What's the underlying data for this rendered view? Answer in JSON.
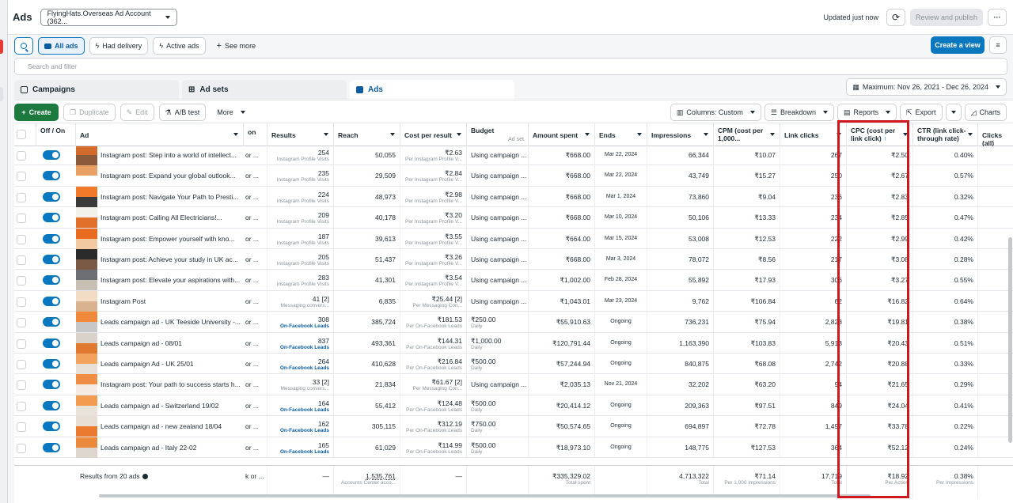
{
  "header": {
    "title": "Ads",
    "account": "FlyingHats.Overseas Ad Account (362...",
    "updated": "Updated just now",
    "review": "Review and publish",
    "more": "···"
  },
  "filters": {
    "all_ads": "All ads",
    "had_delivery": "Had delivery",
    "active_ads": "Active ads",
    "see_more": "See more",
    "create_view": "Create a view"
  },
  "search": {
    "placeholder": "Search and filter"
  },
  "tabs": [
    {
      "label": "Campaigns"
    },
    {
      "label": "Ad sets"
    },
    {
      "label": "Ads"
    }
  ],
  "date_range": "Maximum: Nov 26, 2021 - Dec 26, 2024",
  "toolbar": {
    "create": "Create",
    "duplicate": "Duplicate",
    "edit": "Edit",
    "ab_test": "A/B test",
    "more": "More",
    "columns": "Columns: Custom",
    "breakdown": "Breakdown",
    "reports": "Reports",
    "export": "Export",
    "charts": "Charts"
  },
  "columns": {
    "offon": "Off / On",
    "ad": "Ad",
    "delivery": "on",
    "results": "Results",
    "reach": "Reach",
    "cpr": "Cost per result",
    "budget": "Budget",
    "budget_sub": "Ad set",
    "spent": "Amount spent",
    "ends": "Ends",
    "impressions": "Impressions",
    "cpm": "CPM (cost per 1,000...",
    "link_clicks": "Link clicks",
    "cpc": "CPC (cost per link click)",
    "ctr": "CTR (link click-through rate)",
    "clicks_all": "Clicks (all)"
  },
  "rows": [
    {
      "name": "Instagram post: Step into a world of intellect...",
      "delivery": "or ...",
      "results": "254",
      "results_sub": "Instagram Profile Visits",
      "reach": "50,055",
      "cpr": "₹2.63",
      "cpr_sub": "Per Instagram Profile V...",
      "budget": "Using campaign ...",
      "budget_sub": "",
      "spent": "₹668.00",
      "ends": "Mar 22, 2024",
      "impressions": "66,344",
      "cpm": "₹10.07",
      "link_clicks": "267",
      "cpc": "₹2.50",
      "ctr": "0.40%"
    },
    {
      "name": "Instagram post: Expand your global outlook...",
      "delivery": "or ...",
      "results": "235",
      "results_sub": "Instagram Profile Visits",
      "reach": "29,509",
      "cpr": "₹2.84",
      "cpr_sub": "Per Instagram Profile V...",
      "budget": "Using campaign ...",
      "budget_sub": "",
      "spent": "₹668.00",
      "ends": "Mar 22, 2024",
      "impressions": "43,749",
      "cpm": "₹15.27",
      "link_clicks": "250",
      "cpc": "₹2.67",
      "ctr": "0.57%"
    },
    {
      "name": "Instagram post: Navigate Your Path to Presti...",
      "delivery": "or ...",
      "results": "224",
      "results_sub": "Instagram Profile Visits",
      "reach": "48,973",
      "cpr": "₹2.98",
      "cpr_sub": "Per Instagram Profile V...",
      "budget": "Using campaign ...",
      "budget_sub": "",
      "spent": "₹668.00",
      "ends": "Mar 1, 2024",
      "impressions": "73,860",
      "cpm": "₹9.04",
      "link_clicks": "236",
      "cpc": "₹2.83",
      "ctr": "0.32%"
    },
    {
      "name": "Instagram post: Calling All Electricians!...",
      "delivery": "or ...",
      "results": "209",
      "results_sub": "Instagram Profile Visits",
      "reach": "40,178",
      "cpr": "₹3.20",
      "cpr_sub": "Per Instagram Profile V...",
      "budget": "Using campaign ...",
      "budget_sub": "",
      "spent": "₹668.00",
      "ends": "Mar 10, 2024",
      "impressions": "50,106",
      "cpm": "₹13.33",
      "link_clicks": "234",
      "cpc": "₹2.85",
      "ctr": "0.47%"
    },
    {
      "name": "Instagram post: Empower yourself with kno...",
      "delivery": "or ...",
      "results": "187",
      "results_sub": "Instagram Profile Visits",
      "reach": "39,613",
      "cpr": "₹3.55",
      "cpr_sub": "Per Instagram Profile V...",
      "budget": "Using campaign ...",
      "budget_sub": "",
      "spent": "₹664.00",
      "ends": "Mar 15, 2024",
      "impressions": "53,008",
      "cpm": "₹12.53",
      "link_clicks": "222",
      "cpc": "₹2.99",
      "ctr": "0.42%"
    },
    {
      "name": "Instagram post: Achieve your study in UK ac...",
      "delivery": "or ...",
      "results": "205",
      "results_sub": "Instagram Profile Visits",
      "reach": "51,437",
      "cpr": "₹3.26",
      "cpr_sub": "Per Instagram Profile V...",
      "budget": "Using campaign ...",
      "budget_sub": "",
      "spent": "₹668.00",
      "ends": "Mar 3, 2024",
      "impressions": "78,072",
      "cpm": "₹8.56",
      "link_clicks": "217",
      "cpc": "₹3.08",
      "ctr": "0.28%"
    },
    {
      "name": "Instagram post: Elevate your aspirations with...",
      "delivery": "or ...",
      "results": "283",
      "results_sub": "Instagram Profile Visits",
      "reach": "41,301",
      "cpr": "₹3.54",
      "cpr_sub": "Per Instagram Profile V...",
      "budget": "Using campaign ...",
      "budget_sub": "",
      "spent": "₹1,002.00",
      "ends": "Feb 28, 2024",
      "impressions": "55,892",
      "cpm": "₹17.93",
      "link_clicks": "306",
      "cpc": "₹3.27",
      "ctr": "0.55%"
    },
    {
      "name": "Instagram Post",
      "delivery": "or ...",
      "results": "41 [2]",
      "results_sub": "Messaging convers...",
      "reach": "6,835",
      "cpr": "₹25.44 [2]",
      "cpr_sub": "Per Messaging Con...",
      "budget": "Using campaign ...",
      "budget_sub": "",
      "spent": "₹1,043.01",
      "ends": "Mar 23, 2024",
      "impressions": "9,762",
      "cpm": "₹106.84",
      "link_clicks": "62",
      "cpc": "₹16.82",
      "ctr": "0.64%"
    },
    {
      "name": "Leads campaign ad - UK Teeside University -...",
      "delivery": "or ...",
      "results": "308",
      "results_sub": "On-Facebook Leads",
      "reach": "385,724",
      "cpr": "₹181.53",
      "cpr_sub": "Per On-Facebook Leads",
      "budget": "₹250.00",
      "budget_sub": "Daily",
      "spent": "₹55,910.63",
      "ends": "Ongoing",
      "impressions": "736,231",
      "cpm": "₹75.94",
      "link_clicks": "2,823",
      "cpc": "₹19.81",
      "ctr": "0.38%"
    },
    {
      "name": "Leads campaign ad - 08/01",
      "delivery": "or ...",
      "results": "837",
      "results_sub": "On-Facebook Leads",
      "reach": "493,361",
      "cpr": "₹144.31",
      "cpr_sub": "Per On-Facebook Leads",
      "budget": "₹1,000.00",
      "budget_sub": "Daily",
      "spent": "₹120,791.44",
      "ends": "Ongoing",
      "impressions": "1,163,390",
      "cpm": "₹103.83",
      "link_clicks": "5,913",
      "cpc": "₹20.43",
      "ctr": "0.51%"
    },
    {
      "name": "Leads campaign Ad - UK 25/01",
      "delivery": "or ...",
      "results": "264",
      "results_sub": "On-Facebook Leads",
      "reach": "410,628",
      "cpr": "₹216.84",
      "cpr_sub": "Per On-Facebook Leads",
      "budget": "₹500.00",
      "budget_sub": "Daily",
      "spent": "₹57,244.94",
      "ends": "Ongoing",
      "impressions": "840,875",
      "cpm": "₹68.08",
      "link_clicks": "2,742",
      "cpc": "₹20.88",
      "ctr": "0.33%"
    },
    {
      "name": "Instagram post: Your path to success starts h...",
      "delivery": "or ...",
      "results": "33 [2]",
      "results_sub": "Messaging convers...",
      "reach": "21,834",
      "cpr": "₹61.67 [2]",
      "cpr_sub": "Per Messaging Con...",
      "budget": "Using campaign ...",
      "budget_sub": "",
      "spent": "₹2,035.13",
      "ends": "Nov 21, 2024",
      "impressions": "32,202",
      "cpm": "₹63.20",
      "link_clicks": "94",
      "cpc": "₹21.65",
      "ctr": "0.29%"
    },
    {
      "name": "Leads campaign ad - Switzerland 19/02",
      "delivery": "or ...",
      "results": "164",
      "results_sub": "On-Facebook Leads",
      "reach": "55,412",
      "cpr": "₹124.48",
      "cpr_sub": "Per On-Facebook Leads",
      "budget": "₹500.00",
      "budget_sub": "Daily",
      "spent": "₹20,414.12",
      "ends": "Ongoing",
      "impressions": "209,363",
      "cpm": "₹97.51",
      "link_clicks": "849",
      "cpc": "₹24.04",
      "ctr": "0.41%"
    },
    {
      "name": "Leads campaign ad - new zealand 18/04",
      "delivery": "or ...",
      "results": "162",
      "results_sub": "On-Facebook Leads",
      "reach": "305,115",
      "cpr": "₹312.19",
      "cpr_sub": "Per On-Facebook Leads",
      "budget": "₹750.00",
      "budget_sub": "Daily",
      "spent": "₹50,574.65",
      "ends": "Ongoing",
      "impressions": "694,897",
      "cpm": "₹72.78",
      "link_clicks": "1,497",
      "cpc": "₹33.78",
      "ctr": "0.22%"
    },
    {
      "name": "Leads campaign ad - Italy 22-02",
      "delivery": "or ...",
      "results": "165",
      "results_sub": "On-Facebook Leads",
      "reach": "61,029",
      "cpr": "₹114.99",
      "cpr_sub": "Per On-Facebook Leads",
      "budget": "₹500.00",
      "budget_sub": "Daily",
      "spent": "₹18,973.10",
      "ends": "Ongoing",
      "impressions": "148,775",
      "cpm": "₹127.53",
      "link_clicks": "364",
      "cpc": "₹52.12",
      "ctr": "0.24%"
    }
  ],
  "totals": {
    "label": "Results from 20 ads",
    "delivery": "k or ...",
    "results": "—",
    "reach": "1,535,761",
    "reach_sub": "Accounts Center acco...",
    "cpr": "—",
    "spent": "₹335,329.02",
    "spent_sub": "Total spent",
    "impressions": "4,713,322",
    "impressions_sub": "Total",
    "cpm": "₹71.14",
    "cpm_sub": "Per 1,000 impressions",
    "link_clicks": "17,719",
    "link_clicks_sub": "Total",
    "cpc": "₹18.92",
    "cpc_sub": "Per Action",
    "ctr": "0.38%",
    "ctr_sub": "Per Impressions"
  },
  "colors": {
    "accent": "#0a78be",
    "create": "#1d7a3f",
    "highlight": "#d0171f"
  }
}
